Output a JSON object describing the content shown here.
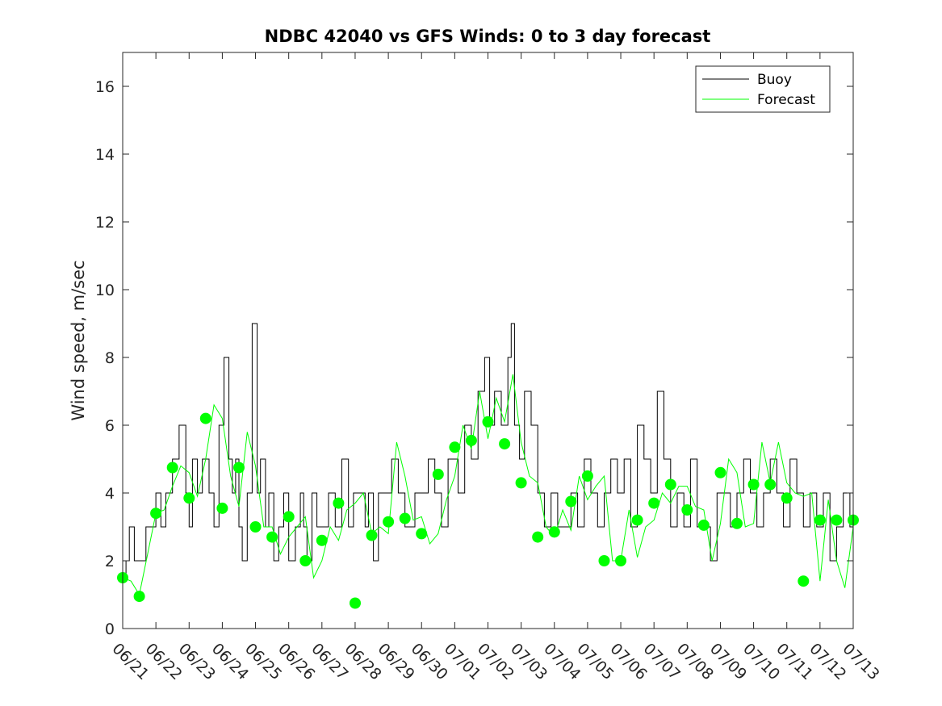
{
  "chart_data": {
    "type": "line",
    "title": "NDBC 42040 vs GFS Winds: 0 to 3 day forecast",
    "xlabel": "",
    "ylabel": "Wind speed, m/sec",
    "ylim": [
      0,
      17
    ],
    "yticks": [
      "0",
      "2",
      "4",
      "6",
      "8",
      "10",
      "12",
      "14",
      "16"
    ],
    "xticks": [
      "06/21",
      "06/22",
      "06/23",
      "06/24",
      "06/25",
      "06/26",
      "06/27",
      "06/28",
      "06/29",
      "06/30",
      "07/01",
      "07/02",
      "07/03",
      "07/04",
      "07/05",
      "07/06",
      "07/07",
      "07/08",
      "07/09",
      "07/10",
      "07/11",
      "07/12",
      "07/13"
    ],
    "grid": false,
    "legend_position": "top-right",
    "colors": {
      "buoy": "#000000",
      "forecast": "#00ff00",
      "axis": "#262626"
    },
    "series": [
      {
        "name": "Buoy",
        "kind": "step",
        "x_days": [
          0.0,
          0.1,
          0.2,
          0.35,
          0.5,
          0.7,
          0.9,
          1.0,
          1.15,
          1.3,
          1.5,
          1.7,
          1.9,
          2.0,
          2.1,
          2.25,
          2.4,
          2.6,
          2.75,
          2.9,
          3.05,
          3.2,
          3.3,
          3.4,
          3.5,
          3.6,
          3.75,
          3.9,
          4.05,
          4.15,
          4.3,
          4.4,
          4.55,
          4.7,
          4.85,
          5.0,
          5.2,
          5.35,
          5.45,
          5.55,
          5.7,
          5.85,
          6.0,
          6.2,
          6.4,
          6.6,
          6.8,
          6.95,
          7.1,
          7.3,
          7.4,
          7.55,
          7.7,
          7.9,
          8.1,
          8.3,
          8.5,
          8.7,
          8.8,
          9.0,
          9.2,
          9.4,
          9.6,
          9.8,
          9.9,
          10.1,
          10.3,
          10.5,
          10.7,
          10.9,
          11.05,
          11.2,
          11.4,
          11.6,
          11.7,
          11.8,
          11.95,
          12.1,
          12.3,
          12.5,
          12.7,
          12.9,
          13.1,
          13.3,
          13.5,
          13.7,
          13.9,
          14.1,
          14.3,
          14.5,
          14.7,
          14.9,
          15.1,
          15.3,
          15.5,
          15.7,
          15.9,
          16.1,
          16.3,
          16.5,
          16.7,
          16.9,
          17.1,
          17.3,
          17.5,
          17.7,
          17.9,
          18.1,
          18.3,
          18.5,
          18.7,
          18.9,
          19.1,
          19.3,
          19.5,
          19.7,
          19.9,
          20.1,
          20.3,
          20.5,
          20.7,
          20.9,
          21.1,
          21.3,
          21.5,
          21.7,
          21.9,
          22.1
        ],
        "values": [
          1.5,
          2,
          3,
          2,
          2,
          3,
          3,
          4,
          3,
          4,
          5,
          6,
          4,
          3,
          5,
          4,
          5,
          4,
          3,
          6,
          8,
          5,
          4,
          5,
          3,
          2,
          4,
          9,
          4,
          5,
          3,
          4,
          2,
          3,
          4,
          2,
          3,
          4,
          3,
          2,
          4,
          3,
          3,
          4,
          3,
          5,
          3,
          4,
          4,
          3,
          4,
          2,
          4,
          4,
          5,
          4,
          3,
          3,
          4,
          4,
          5,
          4,
          3,
          5,
          5,
          4,
          6,
          5,
          7,
          8,
          6,
          7,
          6,
          8,
          9,
          6,
          5,
          7,
          6,
          4,
          3,
          4,
          3,
          3,
          4,
          3,
          5,
          4,
          3,
          4,
          5,
          4,
          5,
          3,
          6,
          5,
          4,
          7,
          5,
          3,
          4,
          3,
          5,
          3,
          3,
          2,
          4,
          4,
          3,
          4,
          5,
          4,
          3,
          4,
          5,
          4,
          3,
          5,
          4,
          3,
          4,
          3,
          4,
          2,
          3,
          4,
          3,
          4
        ]
      },
      {
        "name": "Forecast",
        "kind": "line",
        "x_days": [
          0.0,
          0.25,
          0.5,
          0.75,
          1.0,
          1.25,
          1.5,
          1.75,
          2.0,
          2.25,
          2.5,
          2.75,
          3.0,
          3.25,
          3.5,
          3.75,
          4.0,
          4.25,
          4.5,
          4.75,
          5.0,
          5.25,
          5.5,
          5.75,
          6.0,
          6.25,
          6.5,
          6.75,
          7.0,
          7.25,
          7.5,
          7.75,
          8.0,
          8.25,
          8.5,
          8.75,
          9.0,
          9.25,
          9.5,
          9.75,
          10.0,
          10.25,
          10.5,
          10.75,
          11.0,
          11.25,
          11.5,
          11.75,
          12.0,
          12.25,
          12.5,
          12.75,
          13.0,
          13.25,
          13.5,
          13.75,
          14.0,
          14.25,
          14.5,
          14.75,
          15.0,
          15.25,
          15.5,
          15.75,
          16.0,
          16.25,
          16.5,
          16.75,
          17.0,
          17.25,
          17.5,
          17.75,
          18.0,
          18.25,
          18.5,
          18.75,
          19.0,
          19.25,
          19.5,
          19.75,
          20.0,
          20.25,
          20.5,
          20.75,
          21.0,
          21.25,
          21.5,
          21.75,
          22.0
        ],
        "values": [
          1.5,
          1.4,
          1.0,
          2.2,
          3.4,
          3.5,
          4.2,
          4.8,
          4.6,
          3.9,
          5.0,
          6.6,
          6.2,
          4.5,
          3.6,
          5.8,
          4.8,
          3.0,
          3.0,
          2.2,
          2.7,
          3.0,
          3.3,
          1.5,
          2.0,
          3.0,
          2.6,
          3.5,
          3.7,
          4.0,
          2.8,
          3.0,
          2.8,
          5.5,
          4.5,
          3.2,
          3.3,
          2.5,
          2.8,
          3.8,
          4.5,
          6.0,
          5.3,
          7.0,
          5.6,
          6.8,
          6.1,
          7.5,
          5.5,
          4.5,
          4.3,
          3.0,
          2.7,
          3.5,
          2.9,
          4.5,
          3.8,
          4.2,
          4.5,
          2.0,
          2.0,
          3.5,
          2.1,
          3.0,
          3.2,
          4.0,
          3.7,
          4.2,
          4.2,
          3.6,
          3.5,
          2.0,
          3.1,
          5.0,
          4.6,
          3.0,
          3.1,
          5.5,
          4.3,
          5.5,
          4.3,
          4.0,
          3.9,
          4.0,
          1.4,
          3.8,
          2.0,
          1.2,
          3.0
        ]
      },
      {
        "name": "",
        "kind": "markers",
        "x_days": [
          0.0,
          0.5,
          1.0,
          1.5,
          2.0,
          2.5,
          3.0,
          3.5,
          4.0,
          4.5,
          5.0,
          5.5,
          6.0,
          6.5,
          7.0,
          7.5,
          8.0,
          8.5,
          9.0,
          9.5,
          10.0,
          10.5,
          11.0,
          11.5,
          12.0,
          12.5,
          13.0,
          13.5,
          14.0,
          14.5,
          15.0,
          15.5,
          16.0,
          16.5,
          17.0,
          17.5,
          18.0,
          18.5,
          19.0,
          19.5,
          20.0,
          20.5,
          21.0,
          21.5,
          22.0
        ],
        "values": [
          1.5,
          0.95,
          3.4,
          4.75,
          3.85,
          6.2,
          3.55,
          4.75,
          3.0,
          2.7,
          3.3,
          2.0,
          2.6,
          3.7,
          0.75,
          2.75,
          3.15,
          3.25,
          2.8,
          4.55,
          5.35,
          5.55,
          6.1,
          5.45,
          4.3,
          2.7,
          2.85,
          3.75,
          4.5,
          2.0,
          2.0,
          3.2,
          3.7,
          4.25,
          3.5,
          3.05,
          4.6,
          3.1,
          4.25,
          4.25,
          3.85,
          1.4,
          3.2,
          3.2,
          3.2
        ]
      }
    ]
  }
}
